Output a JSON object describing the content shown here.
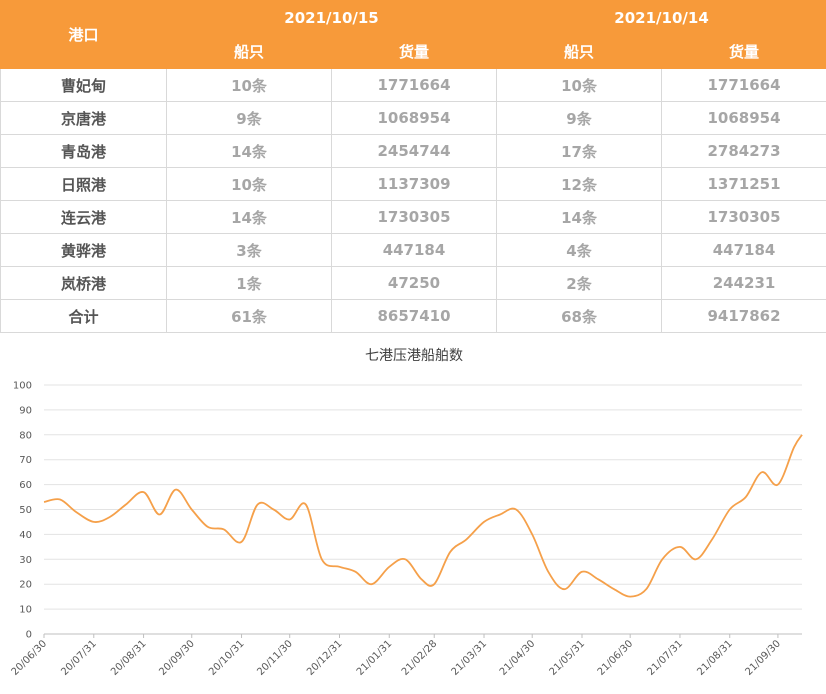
{
  "table": {
    "header_port": "港口",
    "date1": "2021/10/15",
    "date2": "2021/10/14",
    "col_ships": "船只",
    "col_cargo": "货量",
    "rows": [
      {
        "port": "曹妃甸",
        "ships1": "10条",
        "cargo1": "1771664",
        "ships2": "10条",
        "cargo2": "1771664"
      },
      {
        "port": "京唐港",
        "ships1": "9条",
        "cargo1": "1068954",
        "ships2": "9条",
        "cargo2": "1068954"
      },
      {
        "port": "青岛港",
        "ships1": "14条",
        "cargo1": "2454744",
        "ships2": "17条",
        "cargo2": "2784273"
      },
      {
        "port": "日照港",
        "ships1": "10条",
        "cargo1": "1137309",
        "ships2": "12条",
        "cargo2": "1371251"
      },
      {
        "port": "连云港",
        "ships1": "14条",
        "cargo1": "1730305",
        "ships2": "14条",
        "cargo2": "1730305"
      },
      {
        "port": "黄骅港",
        "ships1": "3条",
        "cargo1": "447184",
        "ships2": "4条",
        "cargo2": "447184"
      },
      {
        "port": "岚桥港",
        "ships1": "1条",
        "cargo1": "47250",
        "ships2": "2条",
        "cargo2": "244231"
      },
      {
        "port": "合计",
        "ships1": "61条",
        "cargo1": "8657410",
        "ships2": "68条",
        "cargo2": "9417862"
      }
    ]
  },
  "colors": {
    "header_bg": "#f79a3a",
    "line": "#f5a04a"
  },
  "chart_data": {
    "type": "line",
    "title": "七港压港船舶数",
    "xlabel": "",
    "ylabel": "",
    "ylim": [
      0,
      100
    ],
    "yticks": [
      "0",
      "10",
      "20",
      "30",
      "40",
      "50",
      "60",
      "70",
      "80",
      "90",
      "100"
    ],
    "xticks": [
      "20/06/30",
      "20/07/31",
      "20/08/31",
      "20/09/30",
      "20/10/31",
      "20/11/30",
      "20/12/31",
      "21/01/31",
      "21/02/28",
      "21/03/31",
      "21/04/30",
      "21/05/31",
      "21/06/30",
      "21/07/31",
      "21/08/31",
      "21/09/30"
    ],
    "grid": "horizontal",
    "legend": "none",
    "x": [
      "20/06/30",
      "20/07/10",
      "20/07/20",
      "20/07/31",
      "20/08/10",
      "20/08/20",
      "20/08/31",
      "20/09/10",
      "20/09/20",
      "20/09/30",
      "20/10/10",
      "20/10/20",
      "20/10/31",
      "20/11/10",
      "20/11/20",
      "20/11/30",
      "20/12/10",
      "20/12/20",
      "20/12/31",
      "21/01/10",
      "21/01/20",
      "21/01/31",
      "21/02/10",
      "21/02/20",
      "21/02/28",
      "21/03/10",
      "21/03/20",
      "21/03/31",
      "21/04/10",
      "21/04/20",
      "21/04/30",
      "21/05/10",
      "21/05/20",
      "21/05/31",
      "21/06/10",
      "21/06/20",
      "21/06/30",
      "21/07/10",
      "21/07/20",
      "21/07/31",
      "21/08/10",
      "21/08/20",
      "21/08/31",
      "21/09/10",
      "21/09/20",
      "21/09/30",
      "21/10/10",
      "21/10/15"
    ],
    "series": [
      {
        "values": [
          53,
          54,
          49,
          45,
          47,
          52,
          57,
          48,
          58,
          50,
          43,
          42,
          37,
          52,
          50,
          46,
          52,
          30,
          27,
          25,
          20,
          27,
          30,
          22,
          20,
          33,
          38,
          45,
          48,
          50,
          40,
          25,
          18,
          25,
          22,
          18,
          15,
          18,
          30,
          35,
          30,
          38,
          50,
          55,
          65,
          60,
          75,
          80
        ]
      }
    ]
  }
}
